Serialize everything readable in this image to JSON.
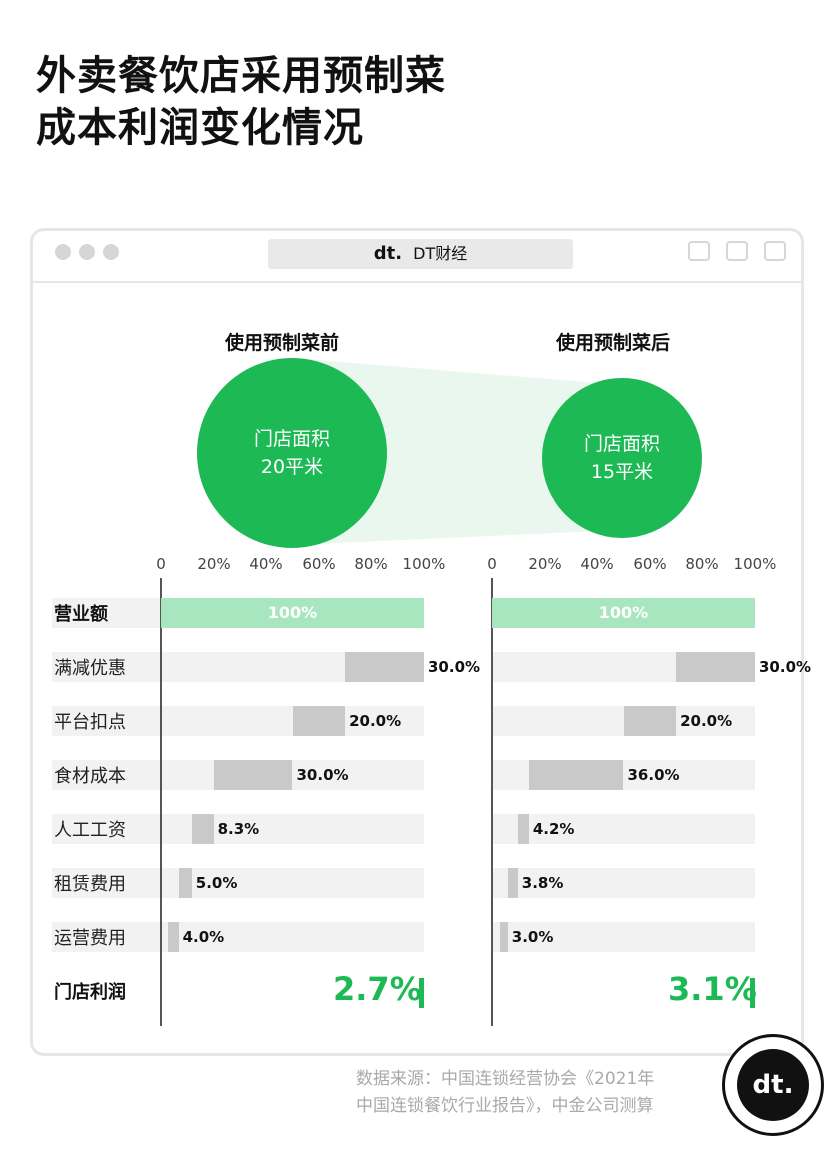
{
  "title_line1": "外卖餐饮店采用预制菜",
  "title_line2": "成本利润变化情况",
  "window": {
    "logo": "dt.",
    "address": "DT财经"
  },
  "panels": [
    {
      "title": "使用预制菜前",
      "circle_line1": "门店面积",
      "circle_line2": "20平米",
      "profit_label": "2.7%"
    },
    {
      "title": "使用预制菜后",
      "circle_line1": "门店面积",
      "circle_line2": "15平米",
      "profit_label": "3.1%"
    }
  ],
  "tick_labels": [
    "0",
    "20%",
    "40%",
    "60%",
    "80%",
    "100%"
  ],
  "rows": [
    "营业额",
    "满减优惠",
    "平台扣点",
    "食材成本",
    "人工工资",
    "租赁费用",
    "运营费用",
    "门店利润"
  ],
  "chart_data": {
    "type": "bar",
    "subtype": "waterfall",
    "categories": [
      "营业额",
      "满减优惠",
      "平台扣点",
      "食材成本",
      "人工工资",
      "租赁费用",
      "运营费用",
      "门店利润"
    ],
    "xlim": [
      0,
      100
    ],
    "series": [
      {
        "name": "使用预制菜前",
        "values": [
          100,
          30.0,
          20.0,
          30.0,
          8.3,
          5.0,
          4.0,
          2.7
        ],
        "labels": [
          "100%",
          "30.0%",
          "20.0%",
          "30.0%",
          "8.3%",
          "5.0%",
          "4.0%",
          "2.7%"
        ]
      },
      {
        "name": "使用预制菜后",
        "values": [
          100,
          30.0,
          20.0,
          36.0,
          4.2,
          3.8,
          3.0,
          3.1
        ],
        "labels": [
          "100%",
          "30.0%",
          "20.0%",
          "36.0%",
          "4.2%",
          "3.8%",
          "3.0%",
          "3.1%"
        ]
      }
    ],
    "colors": {
      "revenue": "#a7e6bf",
      "cost": "#c9c9c9",
      "profit": "#1db954"
    }
  },
  "source_line1": "数据来源：中国连锁经营协会《2021年",
  "source_line2": "中国连锁餐饮行业报告》，中金公司测算",
  "badge": "dt."
}
